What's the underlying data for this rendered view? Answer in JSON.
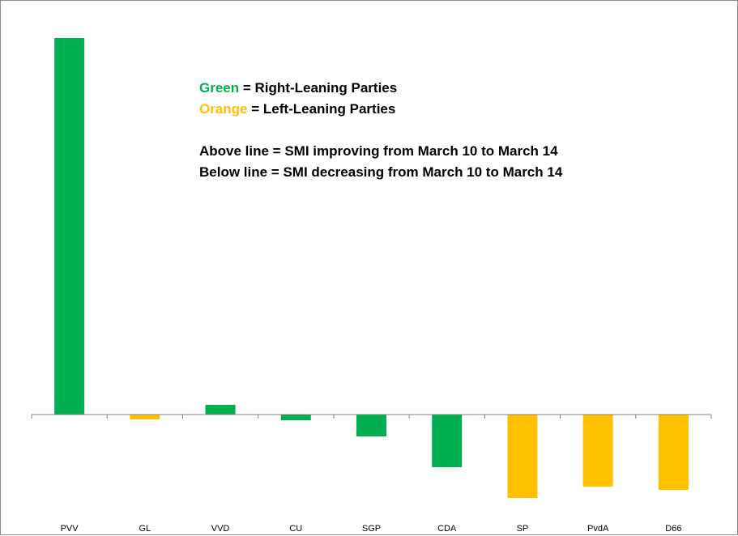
{
  "chart_data": {
    "type": "bar",
    "categories": [
      "PVV",
      "GL",
      "VVD",
      "CU",
      "SGP",
      "CDA",
      "SP",
      "PvdA",
      "D66"
    ],
    "values": [
      465,
      -6,
      12,
      -7,
      -27,
      -65,
      -103,
      -89,
      -93
    ],
    "party_leaning": [
      "right",
      "left",
      "right",
      "right",
      "right",
      "right",
      "left",
      "left",
      "left"
    ],
    "colors": {
      "right": "#00b050",
      "left": "#ffc000",
      "axis": "#808080"
    },
    "title": "",
    "xlabel": "",
    "ylabel": "",
    "grid": false,
    "legend_text": {
      "green_word": "Green",
      "green_rest": " = Right-Leaning Parties",
      "orange_word": "Orange",
      "orange_rest": " = Left-Leaning Parties",
      "above_line": "Above line = SMI improving from March 10 to March 14",
      "below_line": "Below line = SMI decreasing from March 10 to March 14"
    }
  }
}
